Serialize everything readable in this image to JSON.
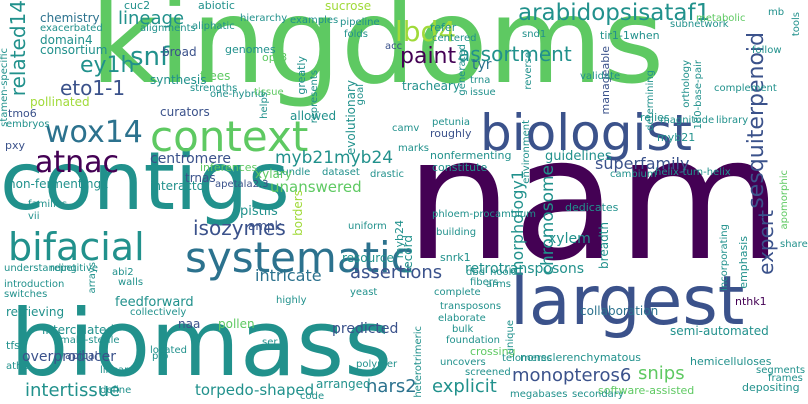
{
  "words": [
    {
      "id": "kingdoms",
      "text": "kingdoms",
      "color": "#5ec962"
    },
    {
      "id": "nam",
      "text": "nam",
      "color": "#440154"
    },
    {
      "id": "contigs",
      "text": "contigs",
      "color": "#21918c"
    },
    {
      "id": "biomass",
      "text": "biomass",
      "color": "#21918c"
    },
    {
      "id": "largest",
      "text": "largest",
      "color": "#3b528b"
    },
    {
      "id": "biologist",
      "text": "biologist",
      "color": "#3b528b"
    },
    {
      "id": "systematic",
      "text": "systematic",
      "color": "#2c728e"
    },
    {
      "id": "context",
      "text": "context",
      "color": "#5ec962"
    },
    {
      "id": "bifacial",
      "text": "bifacial",
      "color": "#21918c"
    },
    {
      "id": "atnac",
      "text": "atnac",
      "color": "#440154"
    },
    {
      "id": "wox14",
      "text": "wox14",
      "color": "#2c728e"
    },
    {
      "id": "arabidopsisataf1",
      "text": "arabidopsisataf1",
      "color": "#21918c"
    },
    {
      "id": "ey1h",
      "text": "ey1h",
      "color": "#21918c"
    },
    {
      "id": "snf",
      "text": "snf",
      "color": "#21918c"
    },
    {
      "id": "lbd4",
      "text": "lbd4",
      "color": "#a0da39"
    },
    {
      "id": "paint",
      "text": "paint",
      "color": "#440154"
    },
    {
      "id": "assortment",
      "text": "assortment",
      "color": "#21918c"
    },
    {
      "id": "lineage",
      "text": "lineage",
      "color": "#21918c"
    },
    {
      "id": "eto1_1",
      "text": "eto1-1",
      "color": "#3b528b"
    },
    {
      "id": "related14",
      "text": "related14",
      "color": "#21918c"
    },
    {
      "id": "chemistry",
      "text": "chemistry",
      "color": "#2c728e"
    },
    {
      "id": "domain4",
      "text": "domain4",
      "color": "#21918c"
    },
    {
      "id": "consortium",
      "text": "consortium",
      "color": "#21918c"
    },
    {
      "id": "pollinated",
      "text": "pollinated",
      "color": "#a0da39"
    },
    {
      "id": "tmo6",
      "text": "tmo6",
      "color": "#3b528b"
    },
    {
      "id": "isozymes",
      "text": "isozymes",
      "color": "#3b528b"
    },
    {
      "id": "myb21myb24",
      "text": "myb21myb24",
      "color": "#21918c"
    },
    {
      "id": "centromere",
      "text": "centromere",
      "color": "#3b528b"
    },
    {
      "id": "superfamily",
      "text": "superfamily",
      "color": "#3b528b"
    },
    {
      "id": "sesquiterpenoid",
      "text": "sesquiterpenoid",
      "color": "#3b528b"
    },
    {
      "id": "expert",
      "text": "expert",
      "color": "#3b528b"
    },
    {
      "id": "chromosome",
      "text": "chromosome",
      "color": "#21918c"
    },
    {
      "id": "morphology1",
      "text": "morphology1",
      "color": "#21918c"
    },
    {
      "id": "guidelines",
      "text": "guidelines",
      "color": "#21918c"
    },
    {
      "id": "xylem",
      "text": "xylem",
      "color": "#21918c"
    },
    {
      "id": "retrotransposons",
      "text": "retrotransposons",
      "color": "#21918c"
    },
    {
      "id": "assertions",
      "text": "assertions",
      "color": "#3b528b"
    },
    {
      "id": "intricate",
      "text": "intricate",
      "color": "#2c728e"
    },
    {
      "id": "unanswered",
      "text": "unanswered",
      "color": "#5ec962"
    },
    {
      "id": "non_fermenting1",
      "text": "non-fermenting1",
      "color": "#21918c"
    },
    {
      "id": "intertissue",
      "text": "intertissue",
      "color": "#21918c"
    },
    {
      "id": "torpedo_shaped",
      "text": "torpedo-shaped",
      "color": "#21918c"
    },
    {
      "id": "nars2",
      "text": "nars2",
      "color": "#2c728e"
    },
    {
      "id": "explicit",
      "text": "explicit",
      "color": "#21918c"
    },
    {
      "id": "monopteros6",
      "text": "monopteros6",
      "color": "#3b528b"
    },
    {
      "id": "snips",
      "text": "snips",
      "color": "#5ec962"
    },
    {
      "id": "hemicelluloses",
      "text": "hemicelluloses",
      "color": "#21918c"
    },
    {
      "id": "nonsclerenchymatous",
      "text": "nonsclerenchymatous",
      "color": "#21918c"
    },
    {
      "id": "software_assisted",
      "text": "software-assisted",
      "color": "#5ec962"
    },
    {
      "id": "semi_automated",
      "text": "semi-automated",
      "color": "#21918c"
    },
    {
      "id": "collaboration",
      "text": "collaboration",
      "color": "#2c728e"
    },
    {
      "id": "predicted",
      "text": "predicted",
      "color": "#3b528b"
    },
    {
      "id": "overproducer",
      "text": "overproducer",
      "color": "#3b528b"
    },
    {
      "id": "retrieving",
      "text": "retrieving",
      "color": "#21918c"
    },
    {
      "id": "intercalated",
      "text": "intercalated",
      "color": "#21918c"
    },
    {
      "id": "feedforward",
      "text": "feedforward",
      "color": "#21918c"
    },
    {
      "id": "pistils",
      "text": "pistils",
      "color": "#21918c"
    },
    {
      "id": "ampk",
      "text": "ampk",
      "color": "#3b528b"
    },
    {
      "id": "pollen",
      "text": "pollen",
      "color": "#5ec962"
    },
    {
      "id": "naa",
      "text": "naa",
      "color": "#3b528b"
    },
    {
      "id": "resource",
      "text": "resource",
      "color": "#21918c"
    },
    {
      "id": "record",
      "text": "record",
      "color": "#21918c"
    },
    {
      "id": "borders",
      "text": "borders",
      "color": "#a0da39"
    },
    {
      "id": "interactor",
      "text": "interactor",
      "color": "#21918c"
    },
    {
      "id": "tyr",
      "text": "tyr",
      "color": "#2c728e"
    },
    {
      "id": "tir1_1when",
      "text": "tir1-1when",
      "color": "#21918c"
    },
    {
      "id": "subnetwork",
      "text": "subnetwork",
      "color": "#21918c"
    },
    {
      "id": "tracheary",
      "text": "tracheary",
      "color": "#21918c"
    },
    {
      "id": "constitute",
      "text": "constitute",
      "color": "#21918c"
    },
    {
      "id": "nonfermenting",
      "text": "nonfermenting",
      "color": "#21918c"
    },
    {
      "id": "dedicates",
      "text": "dedicates",
      "color": "#21918c"
    },
    {
      "id": "breadth",
      "text": "breadth",
      "color": "#21918c"
    },
    {
      "id": "emphasis",
      "text": "emphasis",
      "color": "#21918c"
    },
    {
      "id": "nthk1",
      "text": "nthk1",
      "color": "#440154"
    },
    {
      "id": "trnas",
      "text": "trnas",
      "color": "#3b528b"
    },
    {
      "id": "inferences",
      "text": "inferences",
      "color": "#5ec962"
    },
    {
      "id": "allowed",
      "text": "allowed",
      "color": "#21918c"
    },
    {
      "id": "curators",
      "text": "curators",
      "color": "#3b528b"
    },
    {
      "id": "trees",
      "text": "trees",
      "color": "#5ec962"
    },
    {
      "id": "synthesis",
      "text": "synthesis",
      "color": "#21918c"
    },
    {
      "id": "broad",
      "text": "broad",
      "color": "#3b528b"
    },
    {
      "id": "genomes",
      "text": "genomes",
      "color": "#21918c"
    },
    {
      "id": "opr3",
      "text": "opr3",
      "color": "#5ec962"
    },
    {
      "id": "cuc2",
      "text": "cuc2",
      "color": "#21918c"
    },
    {
      "id": "abiotic",
      "text": "abiotic",
      "color": "#21918c"
    },
    {
      "id": "refer",
      "text": "refer",
      "color": "#21918c"
    },
    {
      "id": "myb21",
      "text": "myb21",
      "color": "#21918c"
    },
    {
      "id": "evolutionary",
      "text": "evolutionary",
      "color": "#21918c"
    },
    {
      "id": "greatly",
      "text": "greatly",
      "color": "#21918c"
    },
    {
      "id": "roughly",
      "text": "roughly",
      "color": "#3b528b"
    },
    {
      "id": "manageable",
      "text": "manageable",
      "color": "#3b528b"
    },
    {
      "id": "relies",
      "text": "relies",
      "color": "#21918c"
    },
    {
      "id": "crossing",
      "text": "crossing",
      "color": "#5ec962"
    },
    {
      "id": "pxy",
      "text": "pxy",
      "color": "#3b528b"
    },
    {
      "id": "understanding",
      "text": "understanding",
      "color": "#21918c"
    },
    {
      "id": "introduction",
      "text": "introduction",
      "color": "#21918c"
    },
    {
      "id": "switches",
      "text": "switches",
      "color": "#21918c"
    },
    {
      "id": "tfs",
      "text": "tfs",
      "color": "#21918c"
    },
    {
      "id": "apical",
      "text": "apical",
      "color": "#3b528b"
    },
    {
      "id": "myb24",
      "text": "myb24",
      "color": "#21918c"
    },
    {
      "id": "snrk1",
      "text": "snrk1",
      "color": "#21918c"
    },
    {
      "id": "phloem_procambium",
      "text": "phloem-procambium",
      "color": "#21918c"
    },
    {
      "id": "bundle",
      "text": "bundle",
      "color": "#21918c"
    },
    {
      "id": "dataset",
      "text": "dataset",
      "color": "#21918c"
    },
    {
      "id": "drastic",
      "text": "drastic",
      "color": "#21918c"
    },
    {
      "id": "marks",
      "text": "marks",
      "color": "#21918c"
    },
    {
      "id": "camv",
      "text": "camv",
      "color": "#21918c"
    },
    {
      "id": "petunia",
      "text": "petunia",
      "color": "#21918c"
    },
    {
      "id": "xylary",
      "text": "xylary",
      "color": "#5ec962"
    },
    {
      "id": "apetala2_3",
      "text": "apetala2.3",
      "color": "#3b528b"
    },
    {
      "id": "vii",
      "text": "vii",
      "color": "#21918c"
    },
    {
      "id": "families",
      "text": "families",
      "color": "#21918c"
    },
    {
      "id": "walls",
      "text": "walls",
      "color": "#21918c"
    },
    {
      "id": "embryos",
      "text": "embryos",
      "color": "#21918c"
    },
    {
      "id": "stamen_specific",
      "text": "stamen-specific",
      "color": "#21918c"
    },
    {
      "id": "exacerbated",
      "text": "exacerbated",
      "color": "#21918c"
    },
    {
      "id": "alignments",
      "text": "alignments",
      "color": "#21918c"
    },
    {
      "id": "aliphatic",
      "text": "aliphatic",
      "color": "#21918c"
    },
    {
      "id": "hierarchy",
      "text": "hierarchy",
      "color": "#21918c"
    },
    {
      "id": "sucrose",
      "text": "sucrose",
      "color": "#a0da39"
    },
    {
      "id": "examples",
      "text": "examples",
      "color": "#21918c"
    },
    {
      "id": "pipeline",
      "text": "pipeline",
      "color": "#21918c"
    },
    {
      "id": "centered",
      "text": "centered",
      "color": "#21918c"
    },
    {
      "id": "folds",
      "text": "folds",
      "color": "#21918c"
    },
    {
      "id": "snd1",
      "text": "snd1",
      "color": "#21918c"
    },
    {
      "id": "acc",
      "text": "acc",
      "color": "#3b528b"
    },
    {
      "id": "metabolic",
      "text": "metabolic",
      "color": "#5ec962"
    },
    {
      "id": "mb",
      "text": "mb",
      "color": "#21918c"
    },
    {
      "id": "tools",
      "text": "tools",
      "color": "#21918c"
    },
    {
      "id": "follow",
      "text": "follow",
      "color": "#21918c"
    },
    {
      "id": "complement",
      "text": "complement",
      "color": "#21918c"
    },
    {
      "id": "library",
      "text": "library",
      "color": "#21918c"
    },
    {
      "id": "magnitude",
      "text": "magnitude",
      "color": "#21918c"
    },
    {
      "id": "cambium",
      "text": "cambium",
      "color": "#21918c"
    },
    {
      "id": "helix_turn_helix",
      "text": "helix-turn-helix",
      "color": "#21918c"
    },
    {
      "id": "validate",
      "text": "validate",
      "color": "#21918c"
    },
    {
      "id": "trna",
      "text": "trna",
      "color": "#21918c"
    },
    {
      "id": "issue",
      "text": "issue",
      "color": "#21918c"
    },
    {
      "id": "ortholgy",
      "text": "orthology",
      "color": "#21918c"
    },
    {
      "id": "bp180",
      "text": "180-base-pair",
      "color": "#21918c"
    },
    {
      "id": "apomorphic",
      "text": "apomorphic",
      "color": "#5ec962"
    },
    {
      "id": "share",
      "text": "share",
      "color": "#21918c"
    },
    {
      "id": "depositing",
      "text": "depositing",
      "color": "#21918c"
    },
    {
      "id": "segments",
      "text": "segments",
      "color": "#21918c"
    },
    {
      "id": "frames",
      "text": "frames",
      "color": "#21918c"
    },
    {
      "id": "incorporating",
      "text": "incorporating",
      "color": "#21918c"
    },
    {
      "id": "telomeres",
      "text": "telomeres",
      "color": "#21918c"
    },
    {
      "id": "screened",
      "text": "screened",
      "color": "#21918c"
    },
    {
      "id": "megabases",
      "text": "megabases",
      "color": "#21918c"
    },
    {
      "id": "secondary",
      "text": "secondary",
      "color": "#21918c"
    },
    {
      "id": "uncovers",
      "text": "uncovers",
      "color": "#21918c"
    },
    {
      "id": "polymer",
      "text": "polymer",
      "color": "#21918c"
    },
    {
      "id": "code",
      "text": "code",
      "color": "#21918c"
    },
    {
      "id": "arranged",
      "text": "arranged",
      "color": "#21918c"
    },
    {
      "id": "foundation",
      "text": "foundation",
      "color": "#21918c"
    },
    {
      "id": "bulk",
      "text": "bulk",
      "color": "#21918c"
    },
    {
      "id": "elaborate",
      "text": "elaborate",
      "color": "#21918c"
    },
    {
      "id": "transposons",
      "text": "transposons",
      "color": "#21918c"
    },
    {
      "id": "complete",
      "text": "complete",
      "color": "#21918c"
    },
    {
      "id": "arms",
      "text": "arms",
      "color": "#21918c"
    },
    {
      "id": "hook",
      "text": "hook",
      "color": "#21918c"
    },
    {
      "id": "dbd",
      "text": "dbd",
      "color": "#21918c"
    },
    {
      "id": "fibers",
      "text": "fibers",
      "color": "#21918c"
    },
    {
      "id": "building",
      "text": "building",
      "color": "#21918c"
    },
    {
      "id": "uniform",
      "text": "uniform",
      "color": "#21918c"
    },
    {
      "id": "yeast",
      "text": "yeast",
      "color": "#21918c"
    },
    {
      "id": "highly",
      "text": "highly",
      "color": "#21918c"
    },
    {
      "id": "collectively",
      "text": "collectively",
      "color": "#21918c"
    },
    {
      "id": "abi2",
      "text": "abi2",
      "color": "#21918c"
    },
    {
      "id": "arrays",
      "text": "arrays",
      "color": "#21918c"
    },
    {
      "id": "repetitive",
      "text": "repetitive",
      "color": "#21918c"
    },
    {
      "id": "male_sterile",
      "text": "male-sterile",
      "color": "#21918c"
    },
    {
      "id": "linear",
      "text": "linear",
      "color": "#21918c"
    },
    {
      "id": "define",
      "text": "define",
      "color": "#21918c"
    },
    {
      "id": "ath1",
      "text": "ath1",
      "color": "#21918c"
    },
    {
      "id": "pro",
      "text": "pro",
      "color": "#21918c"
    },
    {
      "id": "ser",
      "text": "ser",
      "color": "#21918c"
    },
    {
      "id": "located",
      "text": "located",
      "color": "#21918c"
    },
    {
      "id": "heterotrimeric",
      "text": "heterotrimeric",
      "color": "#21918c"
    },
    {
      "id": "unique",
      "text": "unique",
      "color": "#21918c"
    },
    {
      "id": "strengths",
      "text": "strengths",
      "color": "#21918c"
    },
    {
      "id": "one_hybrid",
      "text": "one-hybrid",
      "color": "#21918c"
    },
    {
      "id": "tissue",
      "text": "tissue",
      "color": "#5ec962"
    },
    {
      "id": "helps",
      "text": "helps",
      "color": "#21918c"
    },
    {
      "id": "represents",
      "text": "represents",
      "color": "#21918c"
    },
    {
      "id": "goal",
      "text": "goal",
      "color": "#21918c"
    },
    {
      "id": "generated",
      "text": "generated",
      "color": "#21918c"
    },
    {
      "id": "reverse",
      "text": "reverse",
      "color": "#21918c"
    },
    {
      "id": "determining",
      "text": "determining",
      "color": "#21918c"
    },
    {
      "id": "environment",
      "text": "environment",
      "color": "#21918c"
    }
  ]
}
